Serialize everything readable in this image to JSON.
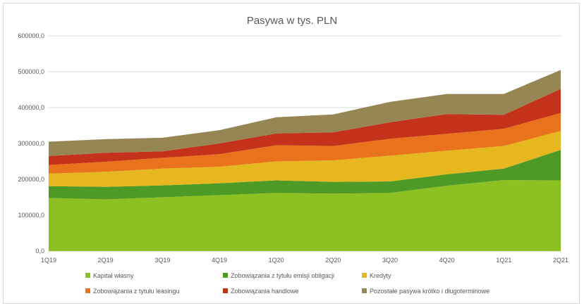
{
  "chart_data": {
    "type": "area",
    "stacked": true,
    "title": "Pasywa w tys. PLN",
    "xlabel": "",
    "ylabel": "",
    "x": [
      "1Q19",
      "2Q19",
      "3Q19",
      "4Q19",
      "1Q20",
      "2Q20",
      "3Q20",
      "4Q20",
      "1Q21",
      "2Q21"
    ],
    "ylim": [
      0,
      600000
    ],
    "yticks": [
      0,
      100000,
      200000,
      300000,
      400000,
      500000,
      600000
    ],
    "ytick_labels": [
      "0,0",
      "100000,0",
      "200000,0",
      "300000,0",
      "400000,0",
      "500000,0",
      "600000,0"
    ],
    "grid": true,
    "legend_position": "bottom",
    "series": [
      {
        "name": "Kapitał własny",
        "color": "#8dc021",
        "values": [
          148000,
          144000,
          150000,
          156000,
          162000,
          160000,
          162000,
          182000,
          198000,
          197000
        ]
      },
      {
        "name": "Zobowiązania z tytułu emisji obligacji",
        "color": "#4e9a26",
        "values": [
          33000,
          35000,
          33000,
          33000,
          35000,
          33000,
          32000,
          32000,
          32000,
          85000
        ]
      },
      {
        "name": "Kredyty",
        "color": "#e6b71e",
        "values": [
          35000,
          42000,
          47000,
          46000,
          53000,
          60000,
          72000,
          66000,
          63000,
          53000
        ]
      },
      {
        "name": "Zobowiązania z tytułu leasingu",
        "color": "#e8731c",
        "values": [
          24000,
          28000,
          30000,
          35000,
          45000,
          40000,
          47000,
          47000,
          48000,
          50000
        ]
      },
      {
        "name": "Zobowiązania handlowe",
        "color": "#c5321b",
        "values": [
          25000,
          25000,
          18000,
          30000,
          33000,
          38000,
          46000,
          55000,
          39000,
          67000
        ]
      },
      {
        "name": "Pozostałe pasywa krótko i długoterminowe",
        "color": "#968654",
        "values": [
          40000,
          38000,
          38000,
          37000,
          45000,
          50000,
          57000,
          56000,
          58000,
          53000
        ]
      }
    ]
  }
}
